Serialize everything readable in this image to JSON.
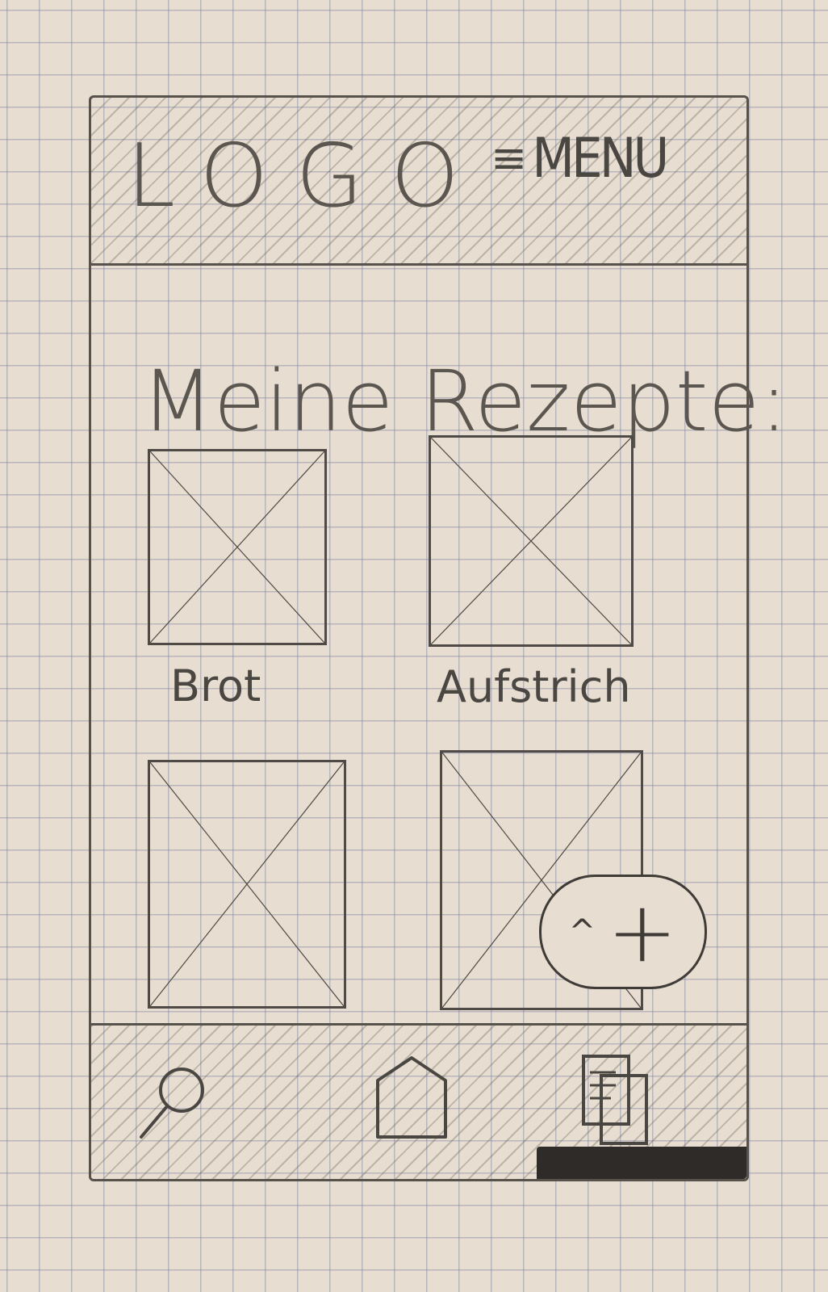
{
  "header": {
    "logo": "LOGO",
    "menu_icon": "hamburger-icon",
    "menu_label": "MENU"
  },
  "main": {
    "title": "Meine Rezepte:",
    "recipes": [
      {
        "label": "Brot",
        "image": "image-placeholder"
      },
      {
        "label": "Aufstrich",
        "image": "image-placeholder"
      },
      {
        "label": "",
        "image": "image-placeholder"
      },
      {
        "label": "",
        "image": "image-placeholder"
      }
    ]
  },
  "fab": {
    "arrow": "^",
    "plus": "+"
  },
  "bottom_nav": {
    "items": [
      {
        "icon": "search-icon"
      },
      {
        "icon": "home-icon"
      },
      {
        "icon": "documents-icon"
      }
    ]
  }
}
